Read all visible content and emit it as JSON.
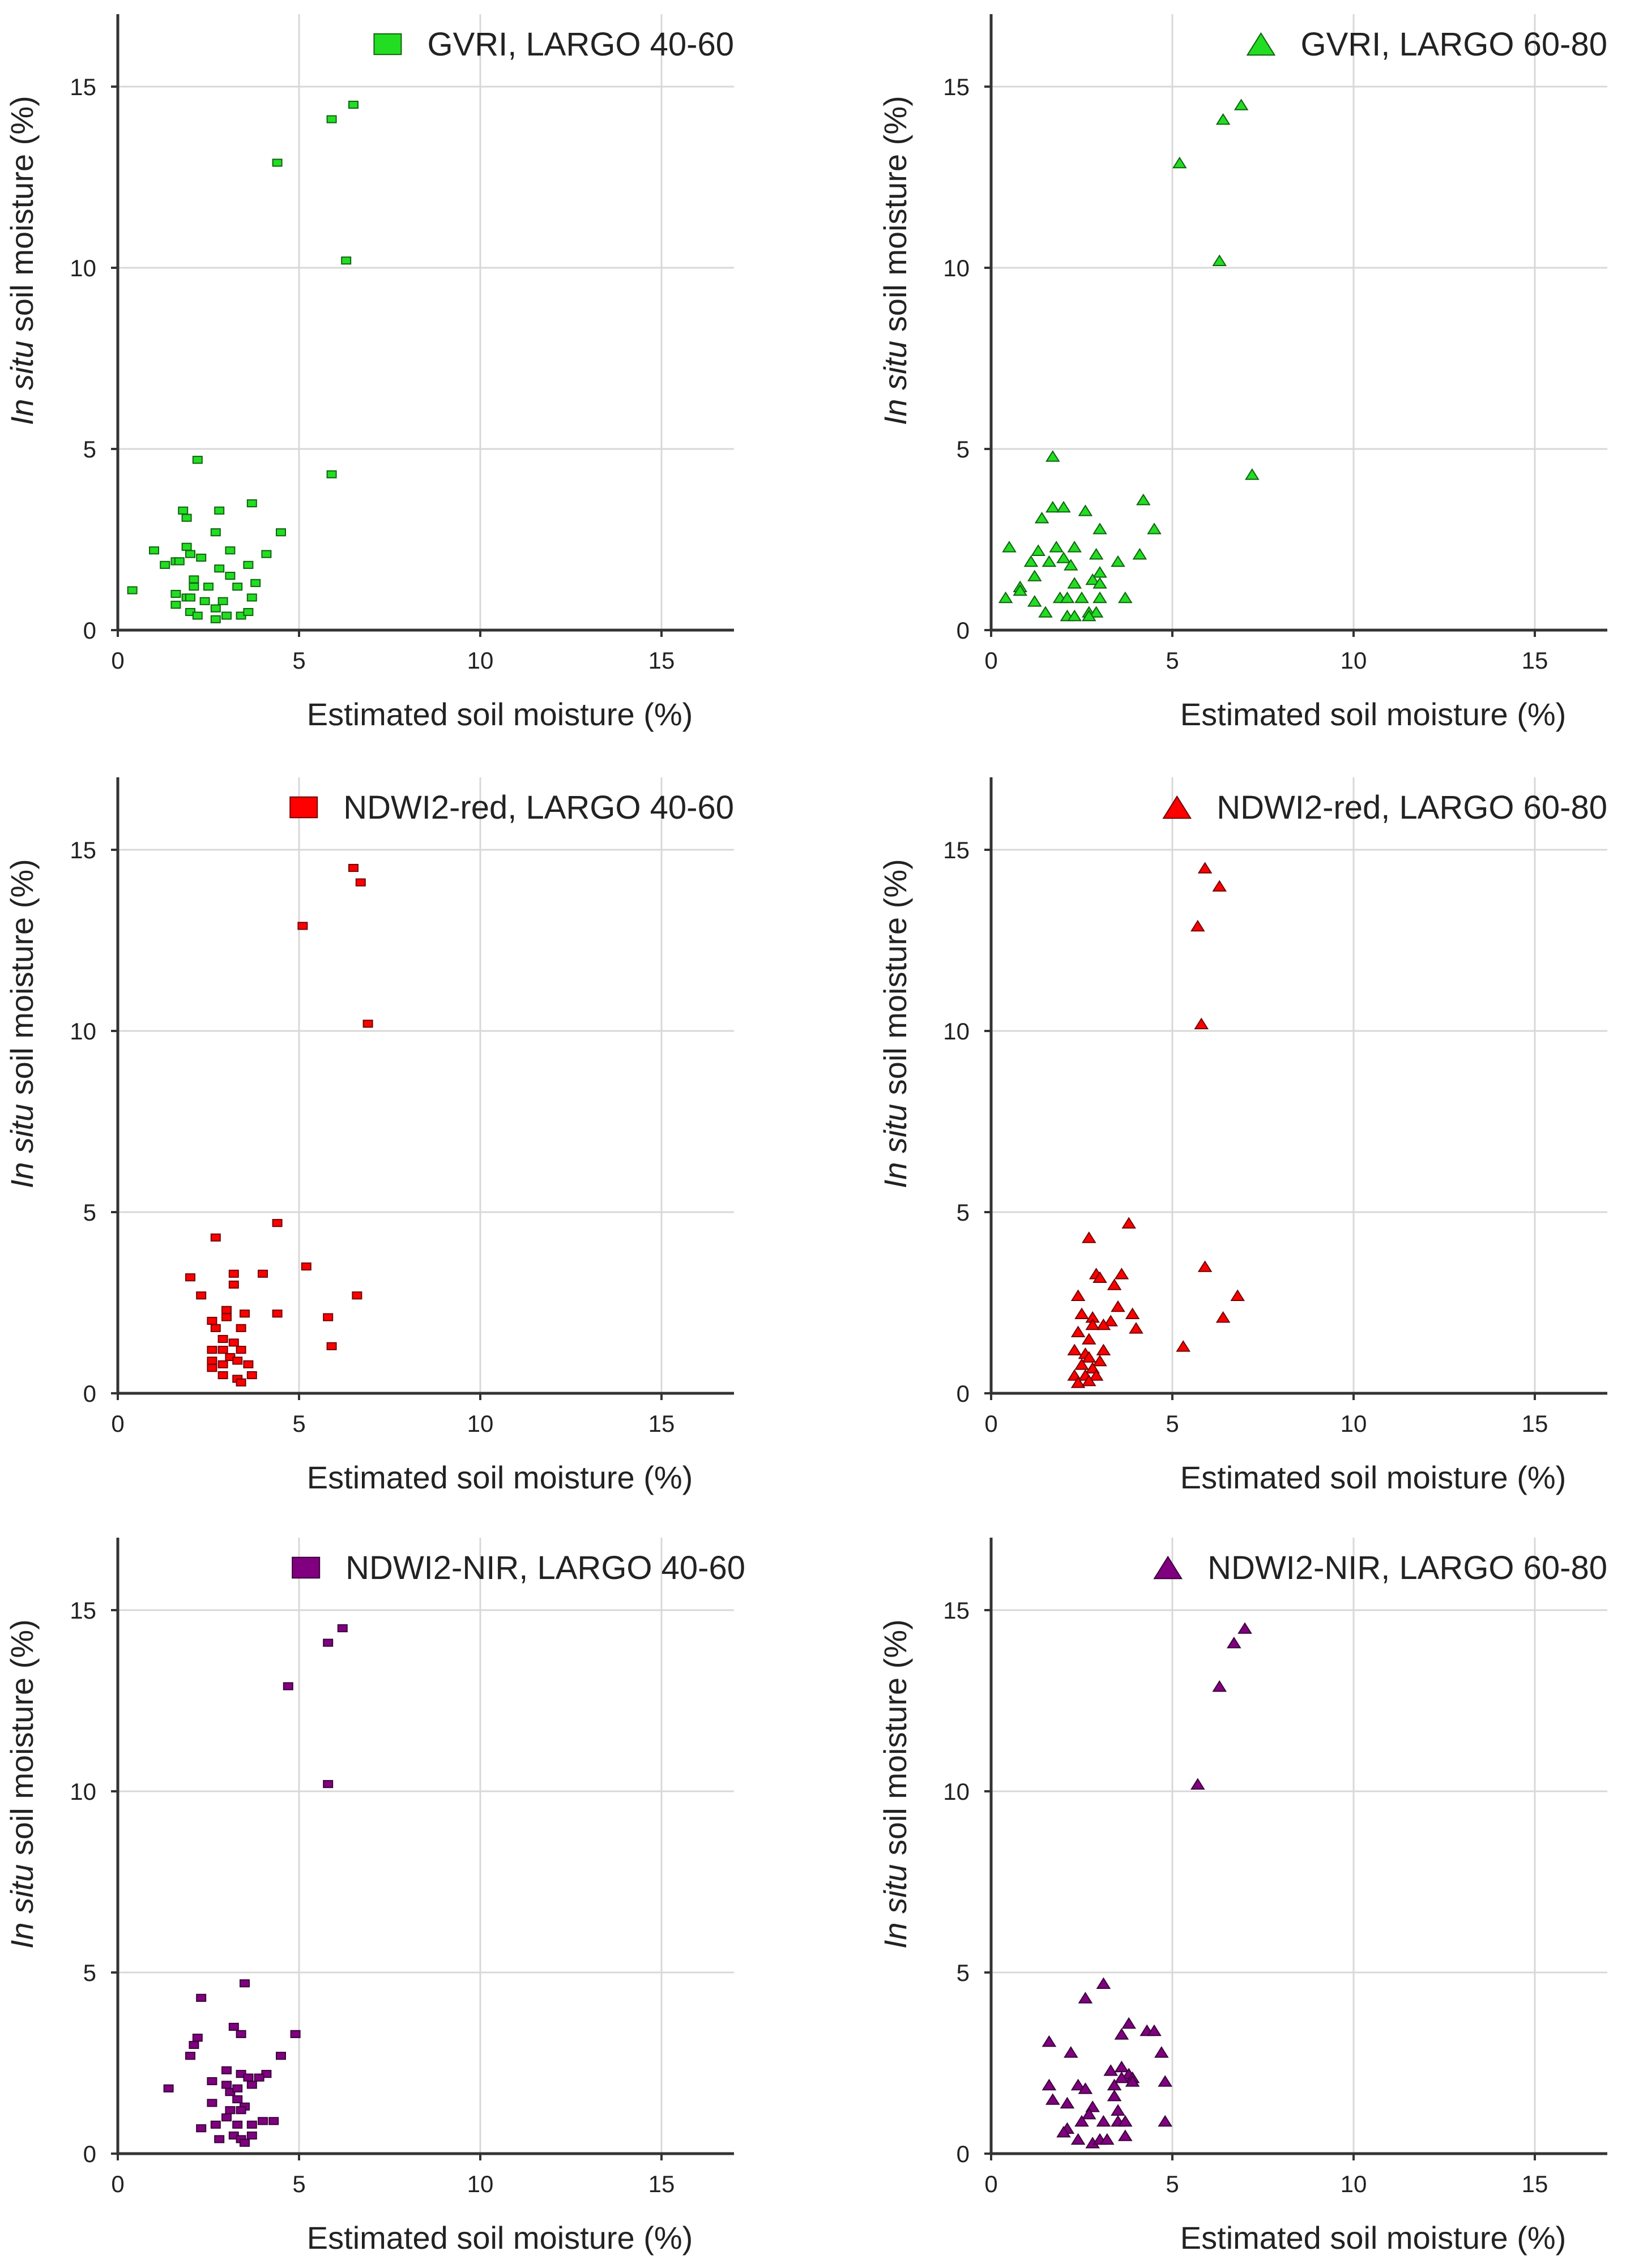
{
  "chart_data": {
    "type": "scatter",
    "xlabel": "Estimated soil moisture (%)",
    "ylabel_italic": "In situ",
    "ylabel_rest": " soil moisture (%)",
    "xlim": [
      0,
      17
    ],
    "ylim": [
      0,
      17
    ],
    "xticks": [
      0,
      5,
      10,
      15
    ],
    "yticks": [
      0,
      5,
      10,
      15
    ],
    "grid": true,
    "legend_placement": "top-right",
    "colors": {
      "green": "#22dd22",
      "red": "#ff0000",
      "purple": "#800080"
    },
    "panels": [
      {
        "label": "GVRI, LARGO 40-60",
        "marker": "square",
        "color": "#22dd22",
        "row": 0,
        "col": 0,
        "points": [
          [
            6.5,
            14.5
          ],
          [
            5.9,
            14.1
          ],
          [
            4.4,
            12.9
          ],
          [
            6.3,
            10.2
          ],
          [
            2.2,
            4.7
          ],
          [
            5.9,
            4.3
          ],
          [
            3.7,
            3.5
          ],
          [
            1.8,
            3.3
          ],
          [
            2.8,
            3.3
          ],
          [
            1.9,
            3.1
          ],
          [
            2.7,
            2.7
          ],
          [
            4.5,
            2.7
          ],
          [
            1.0,
            2.2
          ],
          [
            1.9,
            2.3
          ],
          [
            3.1,
            2.2
          ],
          [
            2.0,
            2.1
          ],
          [
            2.3,
            2.0
          ],
          [
            4.1,
            2.1
          ],
          [
            1.3,
            1.8
          ],
          [
            1.6,
            1.9
          ],
          [
            1.7,
            1.9
          ],
          [
            2.8,
            1.7
          ],
          [
            3.6,
            1.8
          ],
          [
            3.1,
            1.5
          ],
          [
            2.1,
            1.4
          ],
          [
            3.8,
            1.3
          ],
          [
            2.1,
            1.2
          ],
          [
            2.5,
            1.2
          ],
          [
            3.3,
            1.2
          ],
          [
            0.4,
            1.1
          ],
          [
            1.6,
            1.0
          ],
          [
            1.9,
            0.9
          ],
          [
            2.0,
            0.9
          ],
          [
            2.4,
            0.8
          ],
          [
            2.9,
            0.8
          ],
          [
            3.7,
            0.9
          ],
          [
            1.6,
            0.7
          ],
          [
            2.0,
            0.5
          ],
          [
            2.2,
            0.4
          ],
          [
            2.7,
            0.6
          ],
          [
            2.7,
            0.3
          ],
          [
            3.0,
            0.4
          ],
          [
            3.4,
            0.4
          ],
          [
            3.6,
            0.5
          ]
        ]
      },
      {
        "label": "GVRI, LARGO 60-80",
        "marker": "triangle",
        "color": "#22dd22",
        "row": 0,
        "col": 1,
        "points": [
          [
            6.9,
            14.5
          ],
          [
            6.4,
            14.1
          ],
          [
            5.2,
            12.9
          ],
          [
            6.3,
            10.2
          ],
          [
            7.2,
            4.3
          ],
          [
            1.7,
            4.8
          ],
          [
            4.2,
            3.6
          ],
          [
            4.5,
            2.8
          ],
          [
            1.7,
            3.4
          ],
          [
            2.0,
            3.4
          ],
          [
            2.6,
            3.3
          ],
          [
            1.4,
            3.1
          ],
          [
            3.0,
            2.8
          ],
          [
            0.5,
            2.3
          ],
          [
            1.3,
            2.2
          ],
          [
            1.8,
            2.3
          ],
          [
            2.3,
            2.3
          ],
          [
            2.9,
            2.1
          ],
          [
            4.1,
            2.1
          ],
          [
            1.1,
            1.9
          ],
          [
            1.6,
            1.9
          ],
          [
            2.0,
            2.0
          ],
          [
            2.2,
            1.8
          ],
          [
            3.5,
            1.9
          ],
          [
            1.2,
            1.5
          ],
          [
            3.0,
            1.6
          ],
          [
            0.8,
            1.2
          ],
          [
            2.8,
            1.4
          ],
          [
            3.0,
            1.3
          ],
          [
            2.3,
            1.3
          ],
          [
            0.4,
            0.9
          ],
          [
            0.8,
            1.1
          ],
          [
            1.2,
            0.8
          ],
          [
            1.9,
            0.9
          ],
          [
            2.1,
            0.9
          ],
          [
            2.5,
            0.9
          ],
          [
            3.0,
            0.9
          ],
          [
            3.7,
            0.9
          ],
          [
            1.5,
            0.5
          ],
          [
            2.1,
            0.4
          ],
          [
            2.3,
            0.4
          ],
          [
            2.7,
            0.5
          ],
          [
            2.9,
            0.5
          ],
          [
            2.7,
            0.4
          ]
        ]
      },
      {
        "label": "NDWI2-red, LARGO 40-60",
        "marker": "square",
        "color": "#ff0000",
        "row": 1,
        "col": 0,
        "points": [
          [
            6.5,
            14.5
          ],
          [
            6.7,
            14.1
          ],
          [
            5.1,
            12.9
          ],
          [
            6.9,
            10.2
          ],
          [
            4.4,
            4.7
          ],
          [
            2.7,
            4.3
          ],
          [
            5.2,
            3.5
          ],
          [
            2.0,
            3.2
          ],
          [
            3.2,
            3.3
          ],
          [
            3.2,
            3.0
          ],
          [
            4.0,
            3.3
          ],
          [
            2.3,
            2.7
          ],
          [
            6.6,
            2.7
          ],
          [
            3.0,
            2.3
          ],
          [
            3.0,
            2.1
          ],
          [
            3.5,
            2.2
          ],
          [
            4.4,
            2.2
          ],
          [
            5.8,
            2.1
          ],
          [
            2.6,
            2.0
          ],
          [
            2.7,
            1.8
          ],
          [
            3.4,
            1.8
          ],
          [
            2.9,
            1.5
          ],
          [
            5.9,
            1.3
          ],
          [
            3.2,
            1.4
          ],
          [
            2.6,
            1.2
          ],
          [
            2.9,
            1.2
          ],
          [
            3.4,
            1.2
          ],
          [
            3.1,
            1.0
          ],
          [
            3.3,
            0.9
          ],
          [
            2.6,
            0.9
          ],
          [
            2.6,
            0.7
          ],
          [
            2.9,
            0.8
          ],
          [
            3.6,
            0.8
          ],
          [
            2.9,
            0.5
          ],
          [
            3.3,
            0.4
          ],
          [
            3.4,
            0.3
          ],
          [
            3.7,
            0.5
          ]
        ]
      },
      {
        "label": "NDWI2-red, LARGO 60-80",
        "marker": "triangle",
        "color": "#ff0000",
        "row": 1,
        "col": 1,
        "points": [
          [
            5.9,
            14.5
          ],
          [
            6.3,
            14.0
          ],
          [
            5.7,
            12.9
          ],
          [
            5.8,
            10.2
          ],
          [
            3.8,
            4.7
          ],
          [
            2.7,
            4.3
          ],
          [
            5.9,
            3.5
          ],
          [
            2.9,
            3.3
          ],
          [
            3.0,
            3.2
          ],
          [
            3.6,
            3.3
          ],
          [
            3.4,
            3.0
          ],
          [
            2.4,
            2.7
          ],
          [
            6.8,
            2.7
          ],
          [
            3.5,
            2.4
          ],
          [
            3.9,
            2.2
          ],
          [
            2.5,
            2.2
          ],
          [
            2.8,
            2.1
          ],
          [
            6.4,
            2.1
          ],
          [
            3.3,
            2.0
          ],
          [
            3.1,
            1.9
          ],
          [
            2.8,
            1.9
          ],
          [
            4.0,
            1.8
          ],
          [
            2.4,
            1.7
          ],
          [
            2.7,
            1.5
          ],
          [
            5.3,
            1.3
          ],
          [
            3.1,
            1.2
          ],
          [
            2.3,
            1.2
          ],
          [
            2.6,
            1.1
          ],
          [
            2.7,
            1.0
          ],
          [
            3.0,
            0.9
          ],
          [
            2.5,
            0.8
          ],
          [
            2.8,
            0.7
          ],
          [
            2.3,
            0.5
          ],
          [
            2.6,
            0.5
          ],
          [
            2.9,
            0.5
          ],
          [
            2.4,
            0.3
          ],
          [
            2.7,
            0.35
          ]
        ]
      },
      {
        "label": "NDWI2-NIR, LARGO 40-60",
        "marker": "square",
        "color": "#800080",
        "row": 2,
        "col": 0,
        "points": [
          [
            6.2,
            14.5
          ],
          [
            5.8,
            14.1
          ],
          [
            4.7,
            12.9
          ],
          [
            5.8,
            10.2
          ],
          [
            3.5,
            4.7
          ],
          [
            2.3,
            4.3
          ],
          [
            3.2,
            3.5
          ],
          [
            3.4,
            3.3
          ],
          [
            4.9,
            3.3
          ],
          [
            2.2,
            3.2
          ],
          [
            2.1,
            3.0
          ],
          [
            2.0,
            2.7
          ],
          [
            4.5,
            2.7
          ],
          [
            3.0,
            2.3
          ],
          [
            3.4,
            2.2
          ],
          [
            4.1,
            2.2
          ],
          [
            3.9,
            2.1
          ],
          [
            3.6,
            2.1
          ],
          [
            2.6,
            2.0
          ],
          [
            3.7,
            1.9
          ],
          [
            3.0,
            1.9
          ],
          [
            1.4,
            1.8
          ],
          [
            3.1,
            1.7
          ],
          [
            3.3,
            1.8
          ],
          [
            3.3,
            1.5
          ],
          [
            2.6,
            1.4
          ],
          [
            3.5,
            1.3
          ],
          [
            3.1,
            1.2
          ],
          [
            3.4,
            1.2
          ],
          [
            3.0,
            1.0
          ],
          [
            2.7,
            0.8
          ],
          [
            3.3,
            0.8
          ],
          [
            3.7,
            0.8
          ],
          [
            4.0,
            0.9
          ],
          [
            4.3,
            0.9
          ],
          [
            2.3,
            0.7
          ],
          [
            2.8,
            0.4
          ],
          [
            3.2,
            0.5
          ],
          [
            3.4,
            0.4
          ],
          [
            3.7,
            0.5
          ],
          [
            3.5,
            0.3
          ]
        ]
      },
      {
        "label": "NDWI2-NIR, LARGO 60-80",
        "marker": "triangle",
        "color": "#800080",
        "row": 2,
        "col": 1,
        "points": [
          [
            7.0,
            14.5
          ],
          [
            6.7,
            14.1
          ],
          [
            6.3,
            12.9
          ],
          [
            5.7,
            10.2
          ],
          [
            3.1,
            4.7
          ],
          [
            2.6,
            4.3
          ],
          [
            3.8,
            3.6
          ],
          [
            3.6,
            3.3
          ],
          [
            4.3,
            3.4
          ],
          [
            4.5,
            3.4
          ],
          [
            1.6,
            3.1
          ],
          [
            2.2,
            2.8
          ],
          [
            4.7,
            2.8
          ],
          [
            3.6,
            2.4
          ],
          [
            3.3,
            2.3
          ],
          [
            3.8,
            2.2
          ],
          [
            3.9,
            2.1
          ],
          [
            3.6,
            2.1
          ],
          [
            3.9,
            2.0
          ],
          [
            4.8,
            2.0
          ],
          [
            1.6,
            1.9
          ],
          [
            2.4,
            1.9
          ],
          [
            2.6,
            1.8
          ],
          [
            3.4,
            1.9
          ],
          [
            3.4,
            1.6
          ],
          [
            1.7,
            1.5
          ],
          [
            2.1,
            1.4
          ],
          [
            2.8,
            1.3
          ],
          [
            2.7,
            1.1
          ],
          [
            3.5,
            1.2
          ],
          [
            2.5,
            0.9
          ],
          [
            3.1,
            0.9
          ],
          [
            3.5,
            0.9
          ],
          [
            3.7,
            0.9
          ],
          [
            4.8,
            0.9
          ],
          [
            2.1,
            0.7
          ],
          [
            2.0,
            0.6
          ],
          [
            2.4,
            0.4
          ],
          [
            2.8,
            0.3
          ],
          [
            3.0,
            0.4
          ],
          [
            3.2,
            0.4
          ],
          [
            3.7,
            0.5
          ]
        ]
      }
    ]
  }
}
